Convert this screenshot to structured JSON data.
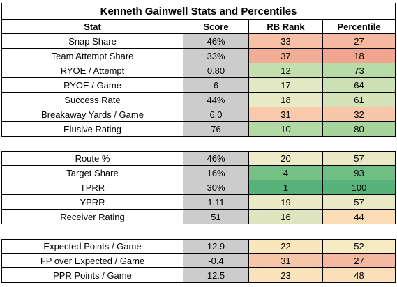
{
  "title": "Kenneth Gainwell Stats and Percentiles",
  "headers": [
    "Stat",
    "Score",
    "RB Rank",
    "Percentile"
  ],
  "sections": [
    {
      "rows": [
        {
          "stat": "Snap Share",
          "score": "46%",
          "rank": "33",
          "pct": "27",
          "rank_color": "#f6c1a6",
          "pct_color": "#f5b8a0"
        },
        {
          "stat": "Team Attempt Share",
          "score": "33%",
          "rank": "37",
          "pct": "18",
          "rank_color": "#f2ad96",
          "pct_color": "#f0a58f"
        },
        {
          "stat": "RYOE / Attempt",
          "score": "0.80",
          "rank": "12",
          "pct": "73",
          "rank_color": "#c3dfae",
          "pct_color": "#b6dba6"
        },
        {
          "stat": "RYOE / Game",
          "score": "6",
          "rank": "17",
          "pct": "64",
          "rank_color": "#e1e8c2",
          "pct_color": "#ccdfb2"
        },
        {
          "stat": "Success Rate",
          "score": "44%",
          "rank": "18",
          "pct": "61",
          "rank_color": "#e6eac5",
          "pct_color": "#d4e2b7"
        },
        {
          "stat": "Breakaway Yards / Game",
          "score": "6.0",
          "rank": "31",
          "pct": "32",
          "rank_color": "#f8c9aa",
          "pct_color": "#f8c6a9"
        },
        {
          "stat": "Elusive Rating",
          "score": "76",
          "rank": "10",
          "pct": "80",
          "rank_color": "#b3d9a2",
          "pct_color": "#a6d49b"
        }
      ]
    },
    {
      "rows": [
        {
          "stat": "Route %",
          "score": "46%",
          "rank": "20",
          "pct": "57",
          "rank_color": "#eeecc8",
          "pct_color": "#e9eac5"
        },
        {
          "stat": "Target Share",
          "score": "16%",
          "rank": "4",
          "pct": "93",
          "rank_color": "#75c085",
          "pct_color": "#6fbe83"
        },
        {
          "stat": "TPRR",
          "score": "30%",
          "rank": "1",
          "pct": "100",
          "rank_color": "#57b379",
          "pct_color": "#57b379"
        },
        {
          "stat": "YPRR",
          "score": "1.11",
          "rank": "19",
          "pct": "57",
          "rank_color": "#e9eac5",
          "pct_color": "#e9eac5"
        },
        {
          "stat": "Receiver Rating",
          "score": "51",
          "rank": "16",
          "pct": "44",
          "rank_color": "#dfe6bf",
          "pct_color": "#fbdcb5"
        }
      ]
    },
    {
      "rows": [
        {
          "stat": "Expected Points / Game",
          "score": "12.9",
          "rank": "22",
          "pct": "52",
          "rank_color": "#f9e6bd",
          "pct_color": "#f6ebc3"
        },
        {
          "stat": "FP over Expected / Game",
          "score": "-0.4",
          "rank": "31",
          "pct": "27",
          "rank_color": "#f8c6a9",
          "pct_color": "#f5b8a0"
        },
        {
          "stat": "PPR Points / Game",
          "score": "12.5",
          "rank": "23",
          "pct": "48",
          "rank_color": "#fae3bb",
          "pct_color": "#fadfb8"
        }
      ]
    }
  ]
}
